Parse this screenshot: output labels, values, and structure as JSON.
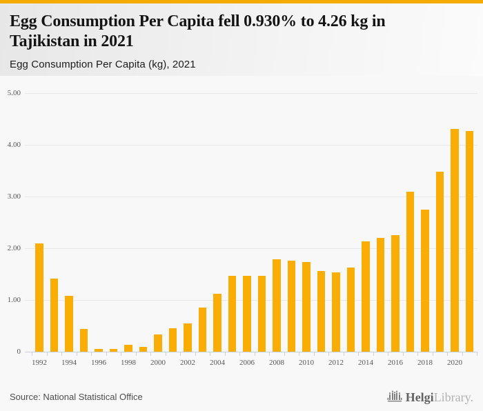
{
  "accent_color": "#f5ab00",
  "header": {
    "title": "Egg Consumption Per Capita fell 0.930% to 4.26 kg in Tajikistan in 2021",
    "subtitle": "Egg Consumption Per Capita (kg), 2021"
  },
  "chart_data": {
    "type": "bar",
    "title": "Egg Consumption Per Capita (kg), 2021",
    "categories": [
      1992,
      1993,
      1994,
      1995,
      1996,
      1997,
      1998,
      1999,
      2000,
      2001,
      2002,
      2003,
      2004,
      2005,
      2006,
      2007,
      2008,
      2009,
      2010,
      2011,
      2012,
      2013,
      2014,
      2015,
      2016,
      2017,
      2018,
      2019,
      2020,
      2021
    ],
    "values": [
      2.09,
      1.41,
      1.08,
      0.44,
      0.05,
      0.05,
      0.13,
      0.1,
      0.34,
      0.46,
      0.54,
      0.85,
      1.12,
      1.46,
      1.47,
      1.47,
      1.78,
      1.76,
      1.73,
      1.56,
      1.53,
      1.63,
      2.13,
      2.2,
      2.25,
      3.09,
      2.74,
      3.47,
      4.3,
      4.26
    ],
    "xlabel": "",
    "ylabel": "",
    "ylim": [
      0,
      5
    ],
    "yticks": [
      0,
      1,
      2,
      3,
      4,
      5
    ],
    "ytick_labels": [
      "0",
      "1.00",
      "2.00",
      "3.00",
      "4.00",
      "5.00"
    ],
    "xtick_labeled_years": [
      1992,
      1994,
      1996,
      1998,
      2000,
      2002,
      2004,
      2006,
      2008,
      2010,
      2012,
      2014,
      2016,
      2018,
      2020
    ],
    "bar_color": "#faad05",
    "gridline_color": "#e8e8e8",
    "axis_color": "#c9d1e0",
    "grid": true,
    "legend": "none"
  },
  "footer": {
    "source": "Source: National Statistical Office",
    "logo": {
      "icon": "bar-chart-icon",
      "brand_primary": "Helgi",
      "brand_secondary": "Library."
    }
  }
}
